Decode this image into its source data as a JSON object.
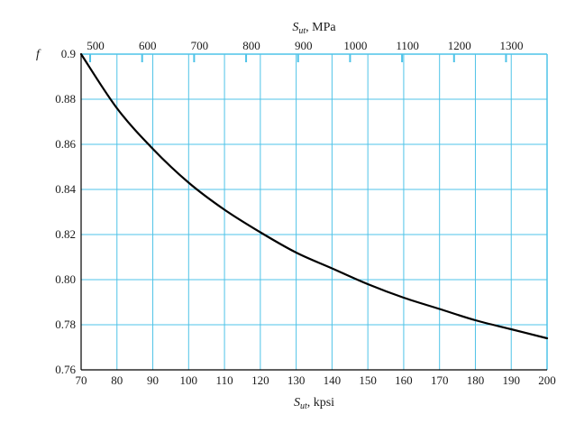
{
  "chart_data": {
    "type": "line",
    "ylabel": "f",
    "xlabel_bottom": {
      "symbol": "S",
      "subscript": "ut",
      "unit": ", kpsi"
    },
    "xlabel_top": {
      "symbol": "S",
      "subscript": "ut",
      "unit": ", MPa"
    },
    "xlim": [
      70,
      200
    ],
    "ylim": [
      0.76,
      0.9
    ],
    "x_ticks_bottom": [
      70,
      80,
      90,
      100,
      110,
      120,
      130,
      140,
      150,
      160,
      170,
      180,
      190,
      200
    ],
    "y_ticks": [
      0.76,
      0.78,
      0.8,
      0.82,
      0.84,
      0.86,
      0.88,
      0.9
    ],
    "y_tick_labels": [
      "0.76",
      "0.78",
      "0.80",
      "0.82",
      "0.84",
      "0.86",
      "0.88",
      "0.9"
    ],
    "x_ticks_top": [
      500,
      600,
      700,
      800,
      900,
      1000,
      1100,
      1200,
      1300
    ],
    "top_axis_conversion_mpa_per_kpsi": 6.89476,
    "grid": true,
    "series": [
      {
        "x": [
          70,
          80,
          90,
          100,
          110,
          120,
          130,
          140,
          150,
          160,
          170,
          180,
          190,
          200
        ],
        "y": [
          0.9,
          0.876,
          0.858,
          0.843,
          0.831,
          0.821,
          0.812,
          0.805,
          0.798,
          0.792,
          0.787,
          0.782,
          0.778,
          0.774
        ]
      }
    ],
    "colors": {
      "grid": "#4fc3e8",
      "axis": "#000000",
      "curve": "#000000",
      "text": "#1a1a1a"
    }
  }
}
